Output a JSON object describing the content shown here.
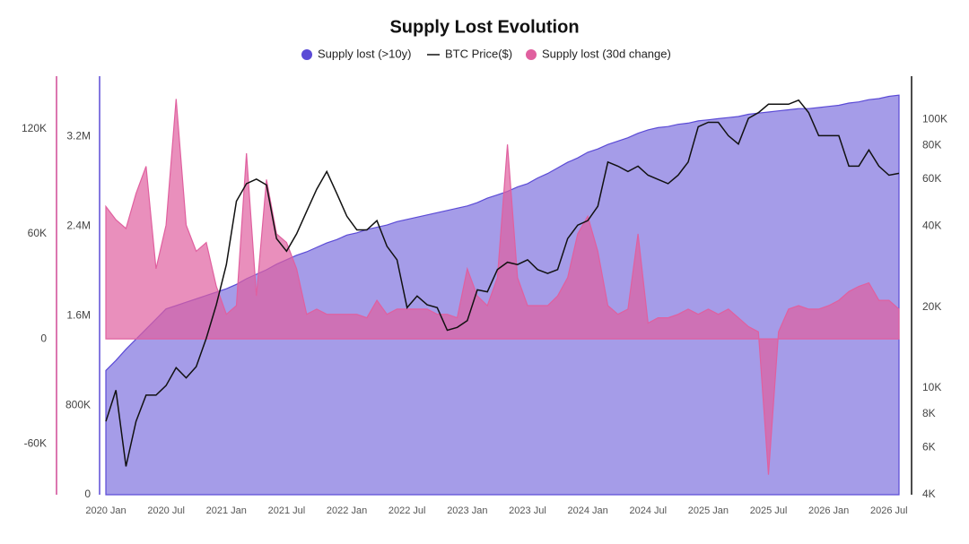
{
  "chart_data": {
    "type": "combo",
    "title": "Supply Lost Evolution",
    "x": [
      "2020-01",
      "2020-02",
      "2020-03",
      "2020-04",
      "2020-05",
      "2020-06",
      "2020-07",
      "2020-08",
      "2020-09",
      "2020-10",
      "2020-11",
      "2020-12",
      "2021-01",
      "2021-02",
      "2021-03",
      "2021-04",
      "2021-05",
      "2021-06",
      "2021-07",
      "2021-08",
      "2021-09",
      "2021-10",
      "2021-11",
      "2021-12",
      "2022-01",
      "2022-02",
      "2022-03",
      "2022-04",
      "2022-05",
      "2022-06",
      "2022-07",
      "2022-08",
      "2022-09",
      "2022-10",
      "2022-11",
      "2022-12",
      "2023-01",
      "2023-02",
      "2023-03",
      "2023-04",
      "2023-05",
      "2023-06",
      "2023-07",
      "2023-08",
      "2023-09",
      "2023-10",
      "2023-11",
      "2023-12",
      "2024-01",
      "2024-02",
      "2024-03",
      "2024-04",
      "2024-05",
      "2024-06",
      "2024-07",
      "2024-08",
      "2024-09",
      "2024-10",
      "2024-11",
      "2024-12",
      "2025-01",
      "2025-02",
      "2025-03",
      "2025-04",
      "2025-05",
      "2025-06",
      "2025-07",
      "2025-08",
      "2025-09",
      "2025-10",
      "2025-11",
      "2025-12",
      "2026-01",
      "2026-02",
      "2026-03",
      "2026-04",
      "2026-05",
      "2026-06",
      "2026-07",
      "2026-08"
    ],
    "xticks": [
      {
        "value": "2020-01",
        "label": "2020 Jan"
      },
      {
        "value": "2020-07",
        "label": "2020 Jul"
      },
      {
        "value": "2021-01",
        "label": "2021 Jan"
      },
      {
        "value": "2021-07",
        "label": "2021 Jul"
      },
      {
        "value": "2022-01",
        "label": "2022 Jan"
      },
      {
        "value": "2022-07",
        "label": "2022 Jul"
      },
      {
        "value": "2023-01",
        "label": "2023 Jan"
      },
      {
        "value": "2023-07",
        "label": "2023 Jul"
      },
      {
        "value": "2024-01",
        "label": "2024 Jan"
      },
      {
        "value": "2024-07",
        "label": "2024 Jul"
      },
      {
        "value": "2025-01",
        "label": "2025 Jan"
      },
      {
        "value": "2025-07",
        "label": "2025 Jul"
      },
      {
        "value": "2026-01",
        "label": "2026 Jan"
      },
      {
        "value": "2026-07",
        "label": "2026 Jul"
      }
    ],
    "ylim": [
      0,
      3740000
    ],
    "yticks": [
      0,
      {
        "value": 800000,
        "label": "800K"
      },
      {
        "value": 1600000,
        "label": "1.6M"
      },
      {
        "value": 2400000,
        "label": "2.4M"
      },
      {
        "value": 3200000,
        "label": "3.2M"
      }
    ],
    "y2lim": [
      4000,
      145000
    ],
    "y2scale": "log",
    "y2ticks": [
      {
        "value": 4000,
        "label": "4K"
      },
      {
        "value": 6000,
        "label": "6K"
      },
      {
        "value": 8000,
        "label": "8K"
      },
      {
        "value": 10000,
        "label": "10K"
      },
      {
        "value": 20000,
        "label": "20K"
      },
      {
        "value": 40000,
        "label": "40K"
      },
      {
        "value": 60000,
        "label": "60K"
      },
      {
        "value": 80000,
        "label": "80K"
      },
      {
        "value": 100000,
        "label": "100K"
      }
    ],
    "y3lim": [
      -89000,
      150000
    ],
    "y3ticks": [
      {
        "value": -60000,
        "label": "-60K"
      },
      0,
      {
        "value": 60000,
        "label": "60K"
      },
      {
        "value": 120000,
        "label": "120K"
      }
    ],
    "series": [
      {
        "name": "Supply lost (>10y)",
        "type": "area",
        "axis": "y",
        "color": "#5b4bd6",
        "values": [
          1110000,
          1200000,
          1300000,
          1390000,
          1480000,
          1570000,
          1660000,
          1690000,
          1720000,
          1750000,
          1780000,
          1810000,
          1840000,
          1880000,
          1930000,
          1970000,
          2010000,
          2060000,
          2100000,
          2140000,
          2170000,
          2210000,
          2250000,
          2280000,
          2320000,
          2340000,
          2370000,
          2390000,
          2410000,
          2440000,
          2460000,
          2480000,
          2500000,
          2520000,
          2540000,
          2560000,
          2580000,
          2610000,
          2650000,
          2680000,
          2710000,
          2750000,
          2780000,
          2830000,
          2870000,
          2920000,
          2970000,
          3010000,
          3060000,
          3090000,
          3130000,
          3160000,
          3190000,
          3230000,
          3260000,
          3280000,
          3290000,
          3310000,
          3320000,
          3340000,
          3350000,
          3360000,
          3370000,
          3380000,
          3400000,
          3410000,
          3420000,
          3430000,
          3440000,
          3450000,
          3450000,
          3460000,
          3470000,
          3480000,
          3500000,
          3510000,
          3530000,
          3540000,
          3560000,
          3570000
        ]
      },
      {
        "name": "BTC Price($)",
        "type": "line",
        "axis": "y2",
        "color": "#111111",
        "values": [
          7500,
          9800,
          5100,
          7500,
          9400,
          9400,
          10200,
          11900,
          10900,
          12000,
          15300,
          20400,
          28800,
          49600,
          57700,
          60000,
          57000,
          36000,
          32300,
          37500,
          45500,
          55000,
          64000,
          53000,
          43600,
          38800,
          38800,
          42000,
          33700,
          30000,
          19900,
          22000,
          20400,
          19900,
          16400,
          16800,
          17800,
          23200,
          22800,
          27600,
          29400,
          28800,
          30000,
          27600,
          26700,
          27600,
          36000,
          40400,
          42000,
          47500,
          69400,
          67000,
          64000,
          67000,
          62000,
          59800,
          57700,
          62000,
          69400,
          94000,
          97600,
          97600,
          87000,
          81000,
          101000,
          106000,
          114000,
          114000,
          114000,
          118000,
          106000,
          87000,
          87000,
          87000,
          67000,
          67000,
          77000,
          67000,
          62000,
          63000
        ]
      },
      {
        "name": "Supply lost (30d change)",
        "type": "area",
        "axis": "y3",
        "color": "#e0609f",
        "values": [
          75600,
          68000,
          63000,
          83000,
          98500,
          40000,
          65000,
          137000,
          65000,
          50000,
          55000,
          30000,
          14000,
          19000,
          106000,
          24500,
          91000,
          60000,
          55000,
          40000,
          14000,
          17000,
          14000,
          14000,
          14000,
          14000,
          12000,
          22000,
          14000,
          17000,
          17000,
          17000,
          17000,
          14000,
          14000,
          12000,
          40000,
          24500,
          19000,
          35000,
          111000,
          35000,
          19000,
          19000,
          19000,
          24500,
          35000,
          60000,
          70000,
          50000,
          19000,
          14000,
          17000,
          60000,
          9000,
          12000,
          12000,
          14000,
          17000,
          14000,
          17000,
          14000,
          17000,
          12000,
          7000,
          4000,
          -77600,
          4000,
          17000,
          19000,
          17000,
          17000,
          19000,
          22000,
          27000,
          30000,
          32000,
          22000,
          22000,
          17000
        ]
      }
    ]
  }
}
